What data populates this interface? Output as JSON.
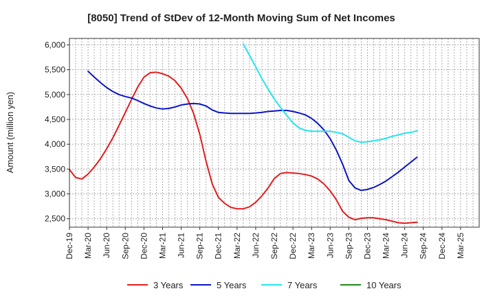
{
  "chart_data": {
    "type": "line",
    "title": "[8050]  Trend of StDev of 12-Month Moving Sum of Net Incomes",
    "ylabel": "Amount (million yen)",
    "xlabel": "",
    "ylim": [
      2330,
      6130
    ],
    "xlim": [
      0,
      66
    ],
    "yticks": [
      2500,
      3000,
      3500,
      4000,
      4500,
      5000,
      5500,
      6000
    ],
    "ytick_labels": [
      "2,500",
      "3,000",
      "3,500",
      "4,000",
      "4,500",
      "5,000",
      "5,500",
      "6,000"
    ],
    "xtick_labels": [
      "Dec-19",
      "Mar-20",
      "Jun-20",
      "Sep-20",
      "Dec-20",
      "Mar-21",
      "Jun-21",
      "Sep-21",
      "Dec-21",
      "Mar-22",
      "Jun-22",
      "Sep-22",
      "Dec-22",
      "Mar-23",
      "Jun-23",
      "Sep-23",
      "Dec-23",
      "Mar-24",
      "Jun-24",
      "Sep-24",
      "Dec-24",
      "Mar-25"
    ],
    "grid": true,
    "legend_position": "bottom",
    "series": [
      {
        "name": "3 Years",
        "color": "#e31a1c",
        "points": [
          [
            0,
            3490
          ],
          [
            1,
            3330
          ],
          [
            2,
            3300
          ],
          [
            3,
            3400
          ],
          [
            4,
            3540
          ],
          [
            5,
            3710
          ],
          [
            6,
            3910
          ],
          [
            7,
            4130
          ],
          [
            8,
            4380
          ],
          [
            9,
            4640
          ],
          [
            10,
            4900
          ],
          [
            11,
            5150
          ],
          [
            12,
            5350
          ],
          [
            13,
            5440
          ],
          [
            14,
            5450
          ],
          [
            15,
            5420
          ],
          [
            16,
            5370
          ],
          [
            17,
            5280
          ],
          [
            18,
            5130
          ],
          [
            19,
            4920
          ],
          [
            20,
            4620
          ],
          [
            21,
            4200
          ],
          [
            22,
            3660
          ],
          [
            23,
            3200
          ],
          [
            24,
            2930
          ],
          [
            25,
            2810
          ],
          [
            26,
            2730
          ],
          [
            27,
            2700
          ],
          [
            28,
            2700
          ],
          [
            29,
            2740
          ],
          [
            30,
            2830
          ],
          [
            31,
            2960
          ],
          [
            32,
            3120
          ],
          [
            33,
            3310
          ],
          [
            34,
            3410
          ],
          [
            35,
            3430
          ],
          [
            36,
            3420
          ],
          [
            37,
            3410
          ],
          [
            38,
            3390
          ],
          [
            39,
            3360
          ],
          [
            40,
            3300
          ],
          [
            41,
            3200
          ],
          [
            42,
            3060
          ],
          [
            43,
            2880
          ],
          [
            44,
            2650
          ],
          [
            45,
            2530
          ],
          [
            46,
            2480
          ],
          [
            47,
            2510
          ],
          [
            48,
            2520
          ],
          [
            49,
            2520
          ],
          [
            50,
            2500
          ],
          [
            51,
            2480
          ],
          [
            52,
            2450
          ],
          [
            53,
            2420
          ],
          [
            54,
            2410
          ],
          [
            55,
            2420
          ],
          [
            56,
            2430
          ]
        ]
      },
      {
        "name": "5 Years",
        "color": "#0a14c8",
        "points": [
          [
            3,
            5470
          ],
          [
            4,
            5350
          ],
          [
            5,
            5240
          ],
          [
            6,
            5140
          ],
          [
            7,
            5060
          ],
          [
            8,
            5000
          ],
          [
            9,
            4960
          ],
          [
            10,
            4930
          ],
          [
            11,
            4880
          ],
          [
            12,
            4820
          ],
          [
            13,
            4770
          ],
          [
            14,
            4730
          ],
          [
            15,
            4710
          ],
          [
            16,
            4720
          ],
          [
            17,
            4750
          ],
          [
            18,
            4790
          ],
          [
            19,
            4810
          ],
          [
            20,
            4820
          ],
          [
            21,
            4810
          ],
          [
            22,
            4770
          ],
          [
            23,
            4690
          ],
          [
            24,
            4640
          ],
          [
            25,
            4630
          ],
          [
            26,
            4620
          ],
          [
            27,
            4620
          ],
          [
            28,
            4620
          ],
          [
            29,
            4620
          ],
          [
            30,
            4630
          ],
          [
            31,
            4640
          ],
          [
            32,
            4660
          ],
          [
            33,
            4670
          ],
          [
            34,
            4680
          ],
          [
            35,
            4680
          ],
          [
            36,
            4660
          ],
          [
            37,
            4630
          ],
          [
            38,
            4590
          ],
          [
            39,
            4520
          ],
          [
            40,
            4420
          ],
          [
            41,
            4290
          ],
          [
            42,
            4110
          ],
          [
            43,
            3880
          ],
          [
            44,
            3600
          ],
          [
            45,
            3270
          ],
          [
            46,
            3120
          ],
          [
            47,
            3070
          ],
          [
            48,
            3090
          ],
          [
            49,
            3130
          ],
          [
            50,
            3190
          ],
          [
            51,
            3260
          ],
          [
            52,
            3350
          ],
          [
            53,
            3440
          ],
          [
            54,
            3540
          ],
          [
            55,
            3640
          ],
          [
            56,
            3740
          ]
        ]
      },
      {
        "name": "7 Years",
        "color": "#22e4f0",
        "points": [
          [
            28,
            6020
          ],
          [
            29,
            5790
          ],
          [
            30,
            5560
          ],
          [
            31,
            5320
          ],
          [
            32,
            5110
          ],
          [
            33,
            4910
          ],
          [
            34,
            4740
          ],
          [
            35,
            4580
          ],
          [
            36,
            4430
          ],
          [
            37,
            4330
          ],
          [
            38,
            4280
          ],
          [
            39,
            4260
          ],
          [
            40,
            4260
          ],
          [
            41,
            4260
          ],
          [
            42,
            4260
          ],
          [
            43,
            4240
          ],
          [
            44,
            4210
          ],
          [
            45,
            4140
          ],
          [
            46,
            4070
          ],
          [
            47,
            4040
          ],
          [
            48,
            4050
          ],
          [
            49,
            4070
          ],
          [
            50,
            4090
          ],
          [
            51,
            4120
          ],
          [
            52,
            4160
          ],
          [
            53,
            4190
          ],
          [
            54,
            4220
          ],
          [
            55,
            4240
          ],
          [
            56,
            4270
          ]
        ]
      },
      {
        "name": "10 Years",
        "color": "#1a8a1a",
        "points": []
      }
    ]
  }
}
